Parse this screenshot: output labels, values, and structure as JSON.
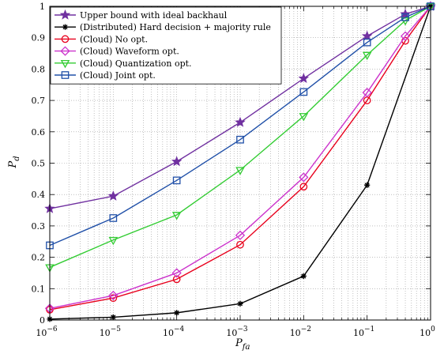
{
  "chart_data": {
    "type": "line",
    "xscale": "log",
    "xlim": [
      1e-06,
      1
    ],
    "ylim": [
      0,
      1
    ],
    "xlabel_base": "P",
    "xlabel_sub": "fa",
    "ylabel_base": "P",
    "ylabel_sub": "d",
    "grid": true,
    "legend_position": "top-left",
    "x_ticks": [
      {
        "value": 1e-06,
        "base": "10",
        "exp": "−6"
      },
      {
        "value": 1e-05,
        "base": "10",
        "exp": "−5"
      },
      {
        "value": 0.0001,
        "base": "10",
        "exp": "−4"
      },
      {
        "value": 0.001,
        "base": "10",
        "exp": "−3"
      },
      {
        "value": 0.01,
        "base": "10",
        "exp": "−2"
      },
      {
        "value": 0.1,
        "base": "10",
        "exp": "−1"
      },
      {
        "value": 1,
        "base": "10",
        "exp": "0"
      }
    ],
    "y_ticks": [
      {
        "value": 0,
        "label": "0"
      },
      {
        "value": 0.1,
        "label": "0.1"
      },
      {
        "value": 0.2,
        "label": "0.2"
      },
      {
        "value": 0.3,
        "label": "0.3"
      },
      {
        "value": 0.4,
        "label": "0.4"
      },
      {
        "value": 0.5,
        "label": "0.5"
      },
      {
        "value": 0.6,
        "label": "0.6"
      },
      {
        "value": 0.7,
        "label": "0.7"
      },
      {
        "value": 0.8,
        "label": "0.8"
      },
      {
        "value": 0.9,
        "label": "0.9"
      },
      {
        "value": 1,
        "label": "1"
      }
    ],
    "series": [
      {
        "name": "Upper bound with ideal backhaul",
        "color": "#7030A0",
        "marker": "star",
        "x": [
          1e-06,
          1e-05,
          0.0001,
          0.001,
          0.01,
          0.1,
          0.4,
          1
        ],
        "y": [
          0.355,
          0.395,
          0.505,
          0.63,
          0.77,
          0.905,
          0.975,
          1.0
        ]
      },
      {
        "name": "(Distributed) Hard decision + majority rule",
        "color": "#000000",
        "marker": "asterisk",
        "x": [
          1e-06,
          1e-05,
          0.0001,
          0.001,
          0.01,
          0.1,
          1
        ],
        "y": [
          0.003,
          0.009,
          0.023,
          0.052,
          0.14,
          0.43,
          1.0
        ]
      },
      {
        "name": "(Cloud) No opt.",
        "color": "#E8001C",
        "marker": "circle",
        "x": [
          1e-06,
          1e-05,
          0.0001,
          0.001,
          0.01,
          0.1,
          0.4,
          1
        ],
        "y": [
          0.033,
          0.07,
          0.13,
          0.24,
          0.425,
          0.7,
          0.89,
          1.0
        ]
      },
      {
        "name": "(Cloud) Waveform opt.",
        "color": "#CC33CC",
        "marker": "diamond",
        "x": [
          1e-06,
          1e-05,
          0.0001,
          0.001,
          0.01,
          0.1,
          0.4,
          1
        ],
        "y": [
          0.037,
          0.078,
          0.15,
          0.27,
          0.455,
          0.725,
          0.905,
          1.0
        ]
      },
      {
        "name": "(Cloud) Quantization opt.",
        "color": "#33CC33",
        "marker": "triangle-down",
        "x": [
          1e-06,
          1e-05,
          0.0001,
          0.001,
          0.01,
          0.1,
          0.4,
          1
        ],
        "y": [
          0.168,
          0.255,
          0.335,
          0.478,
          0.65,
          0.845,
          0.955,
          1.0
        ]
      },
      {
        "name": "(Cloud) Joint opt.",
        "color": "#2050A8",
        "marker": "square",
        "x": [
          1e-06,
          1e-05,
          0.0001,
          0.001,
          0.01,
          0.1,
          0.4,
          1
        ],
        "y": [
          0.238,
          0.325,
          0.445,
          0.575,
          0.727,
          0.885,
          0.965,
          1.0
        ]
      }
    ]
  }
}
